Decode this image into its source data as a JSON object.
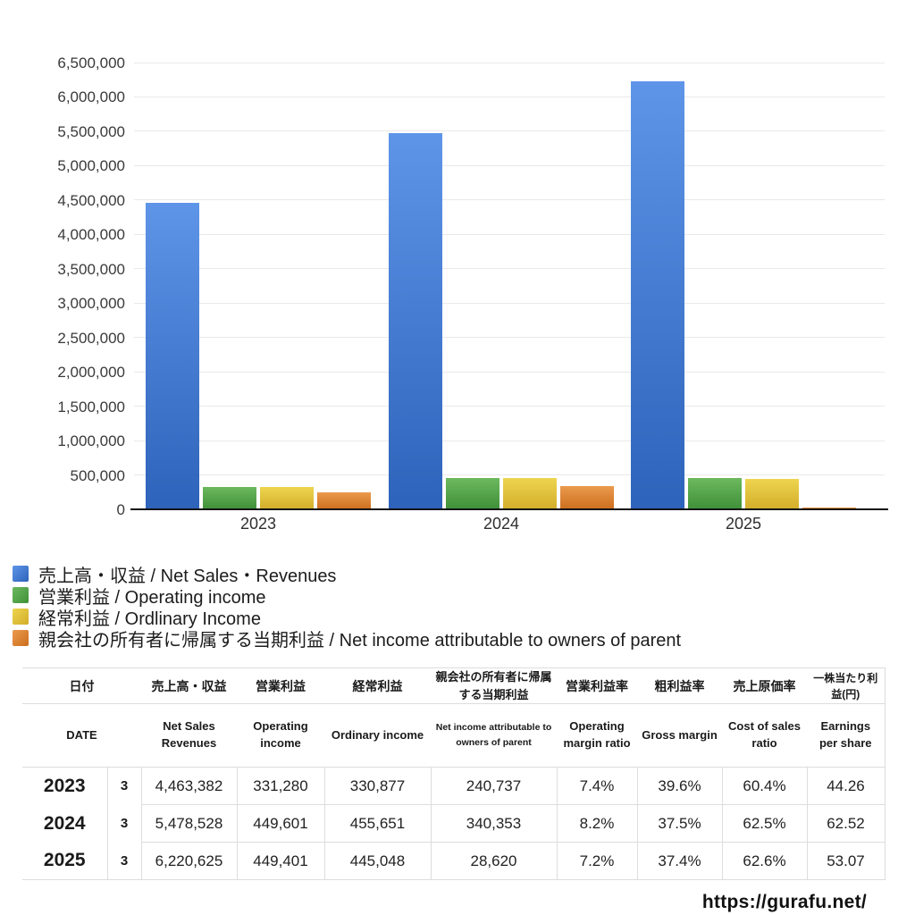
{
  "chart_data": {
    "type": "bar",
    "title": "",
    "categories": [
      "2023",
      "2024",
      "2025"
    ],
    "series": [
      {
        "key": "net-sales",
        "name": "売上高・収益 / Net Sales・Revenues",
        "color_top": "#5e95e8",
        "color_bottom": "#2d63ba",
        "values": [
          4463382,
          5478528,
          6220625
        ]
      },
      {
        "key": "operating-income",
        "name": "営業利益 / Operating income",
        "color_top": "#6cb95e",
        "color_bottom": "#3f9039",
        "values": [
          331280,
          449601,
          449401
        ]
      },
      {
        "key": "ordinary-income",
        "name": "経常利益 / Ordlinary Income",
        "color_top": "#eed54f",
        "color_bottom": "#d2ad2a",
        "values": [
          330877,
          455651,
          445048
        ]
      },
      {
        "key": "net-income-parent",
        "name": "親会社の所有者に帰属する当期利益 / Net income attributable to owners of parent",
        "color_top": "#eb9a4d",
        "color_bottom": "#cc6e1e",
        "values": [
          240737,
          340353,
          28620
        ]
      }
    ],
    "ylim": [
      0,
      6500000
    ],
    "ytick_step": 500000,
    "yticks": [
      "0",
      "500,000",
      "1,000,000",
      "1,500,000",
      "2,000,000",
      "2,500,000",
      "3,000,000",
      "3,500,000",
      "4,000,000",
      "4,500,000",
      "5,000,000",
      "5,500,000",
      "6,000,000",
      "6,500,000"
    ],
    "grid": true,
    "legend_position": "bottom-left"
  },
  "table": {
    "header_ja": [
      "日付",
      "売上高・収益",
      "営業利益",
      "経常利益",
      "親会社の所有者に帰属する当期利益",
      "営業利益率",
      "粗利益率",
      "売上原価率",
      "一株当たり利益(円)"
    ],
    "header_en": [
      "DATE",
      "Net Sales Revenues",
      "Operating income",
      "Ordinary income",
      "Net income attributable to owners of parent",
      "Operating margin ratio",
      "Gross margin",
      "Cost of sales ratio",
      "Earnings per share"
    ],
    "rows": [
      {
        "year": "2023",
        "month": "3",
        "values": [
          "4,463,382",
          "331,280",
          "330,877",
          "240,737",
          "7.4%",
          "39.6%",
          "60.4%",
          "44.26"
        ]
      },
      {
        "year": "2024",
        "month": "3",
        "values": [
          "5,478,528",
          "449,601",
          "455,651",
          "340,353",
          "8.2%",
          "37.5%",
          "62.5%",
          "62.52"
        ]
      },
      {
        "year": "2025",
        "month": "3",
        "values": [
          "6,220,625",
          "449,401",
          "445,048",
          "28,620",
          "7.2%",
          "37.4%",
          "62.6%",
          "53.07"
        ]
      }
    ]
  },
  "footer": {
    "url": "https://gurafu.net/"
  }
}
